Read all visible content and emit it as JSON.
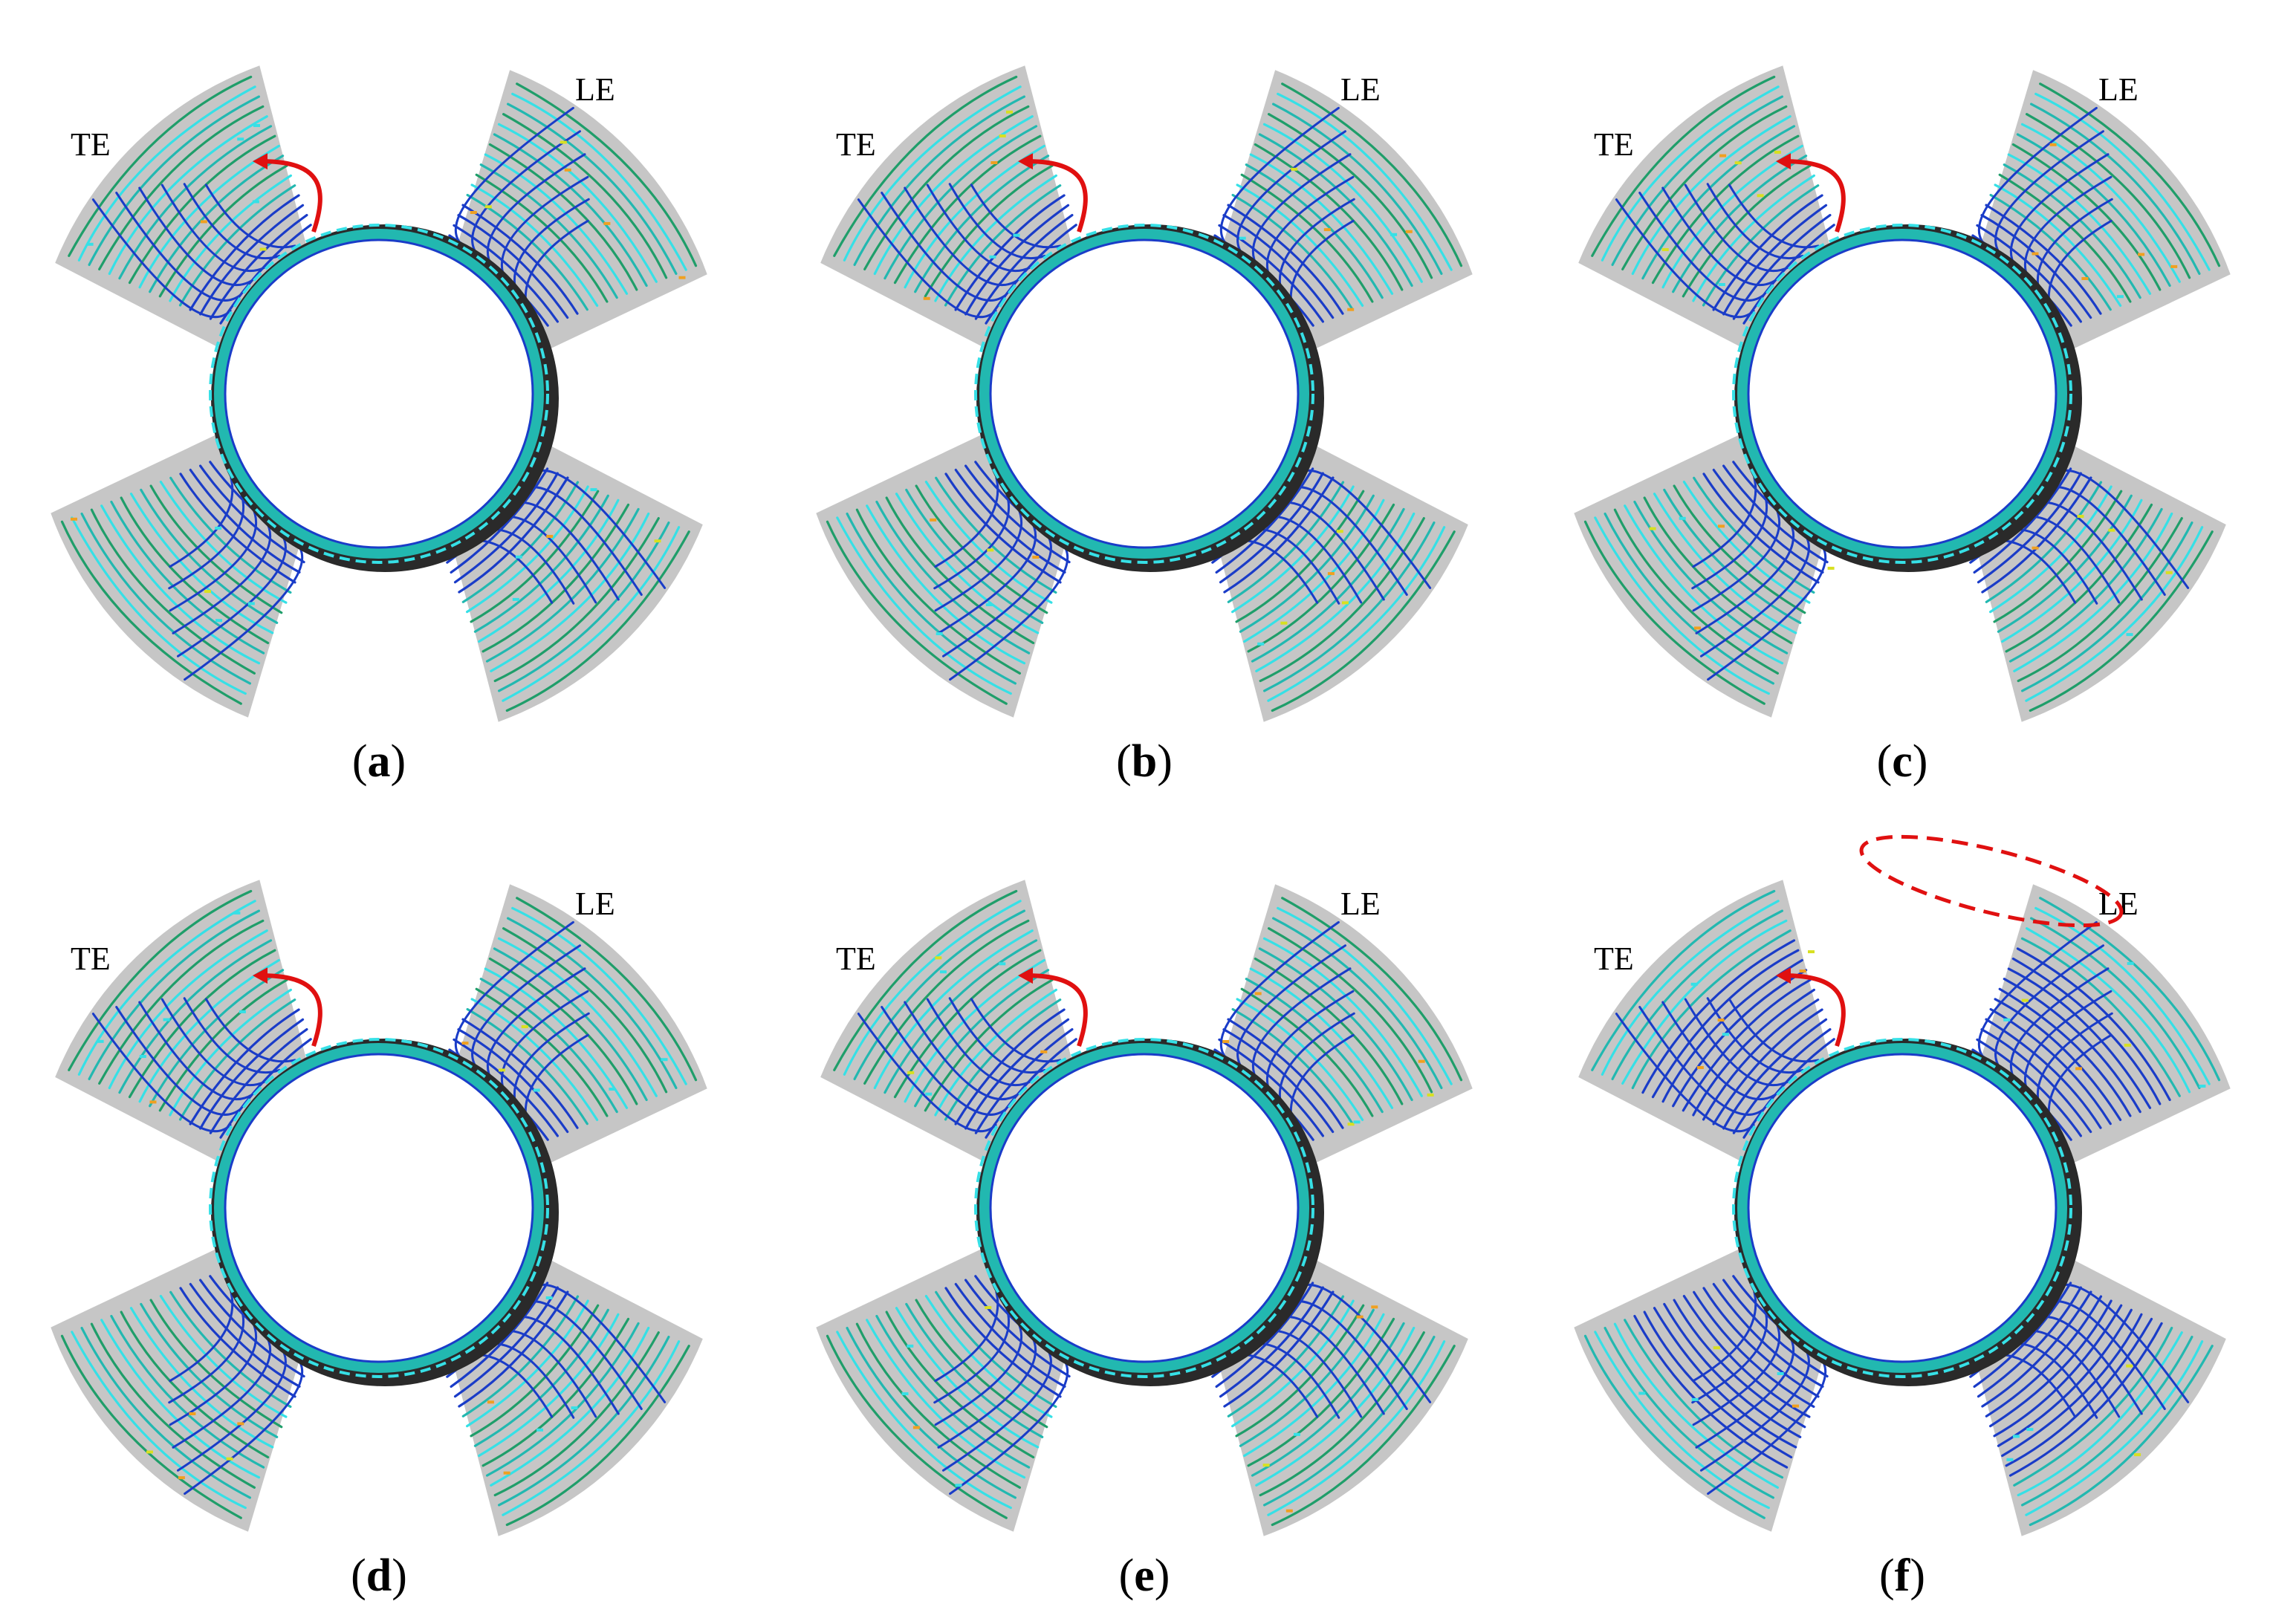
{
  "figure": {
    "panels": [
      {
        "id": "a",
        "caption_open": "(",
        "caption_letter": "a",
        "caption_close": ")",
        "te_label": "TE",
        "le_label": "LE",
        "tip_vortex_marked": false
      },
      {
        "id": "b",
        "caption_open": "(",
        "caption_letter": "b",
        "caption_close": ")",
        "te_label": "TE",
        "le_label": "LE",
        "tip_vortex_marked": false
      },
      {
        "id": "c",
        "caption_open": "(",
        "caption_letter": "c",
        "caption_close": ")",
        "te_label": "TE",
        "le_label": "LE",
        "tip_vortex_marked": false
      },
      {
        "id": "d",
        "caption_open": "(",
        "caption_letter": "d",
        "caption_close": ")",
        "te_label": "TE",
        "le_label": "LE",
        "tip_vortex_marked": false
      },
      {
        "id": "e",
        "caption_open": "(",
        "caption_letter": "e",
        "caption_close": ")",
        "te_label": "TE",
        "le_label": "LE",
        "tip_vortex_marked": false
      },
      {
        "id": "f",
        "caption_open": "(",
        "caption_letter": "f",
        "caption_close": ")",
        "te_label": "TE",
        "le_label": "LE",
        "tip_vortex_marked": true
      }
    ],
    "colors": {
      "blade_surface": "#c6c6c6",
      "hub": "#2a2a2a",
      "streamline_primary": "#22b8b0",
      "streamline_secondary": "#1f9e6a",
      "streamline_low": "#1a3cc8",
      "streamline_cyan": "#36e0e6",
      "arrow": "#e01010",
      "dashed_ellipse": "#e01010"
    }
  }
}
